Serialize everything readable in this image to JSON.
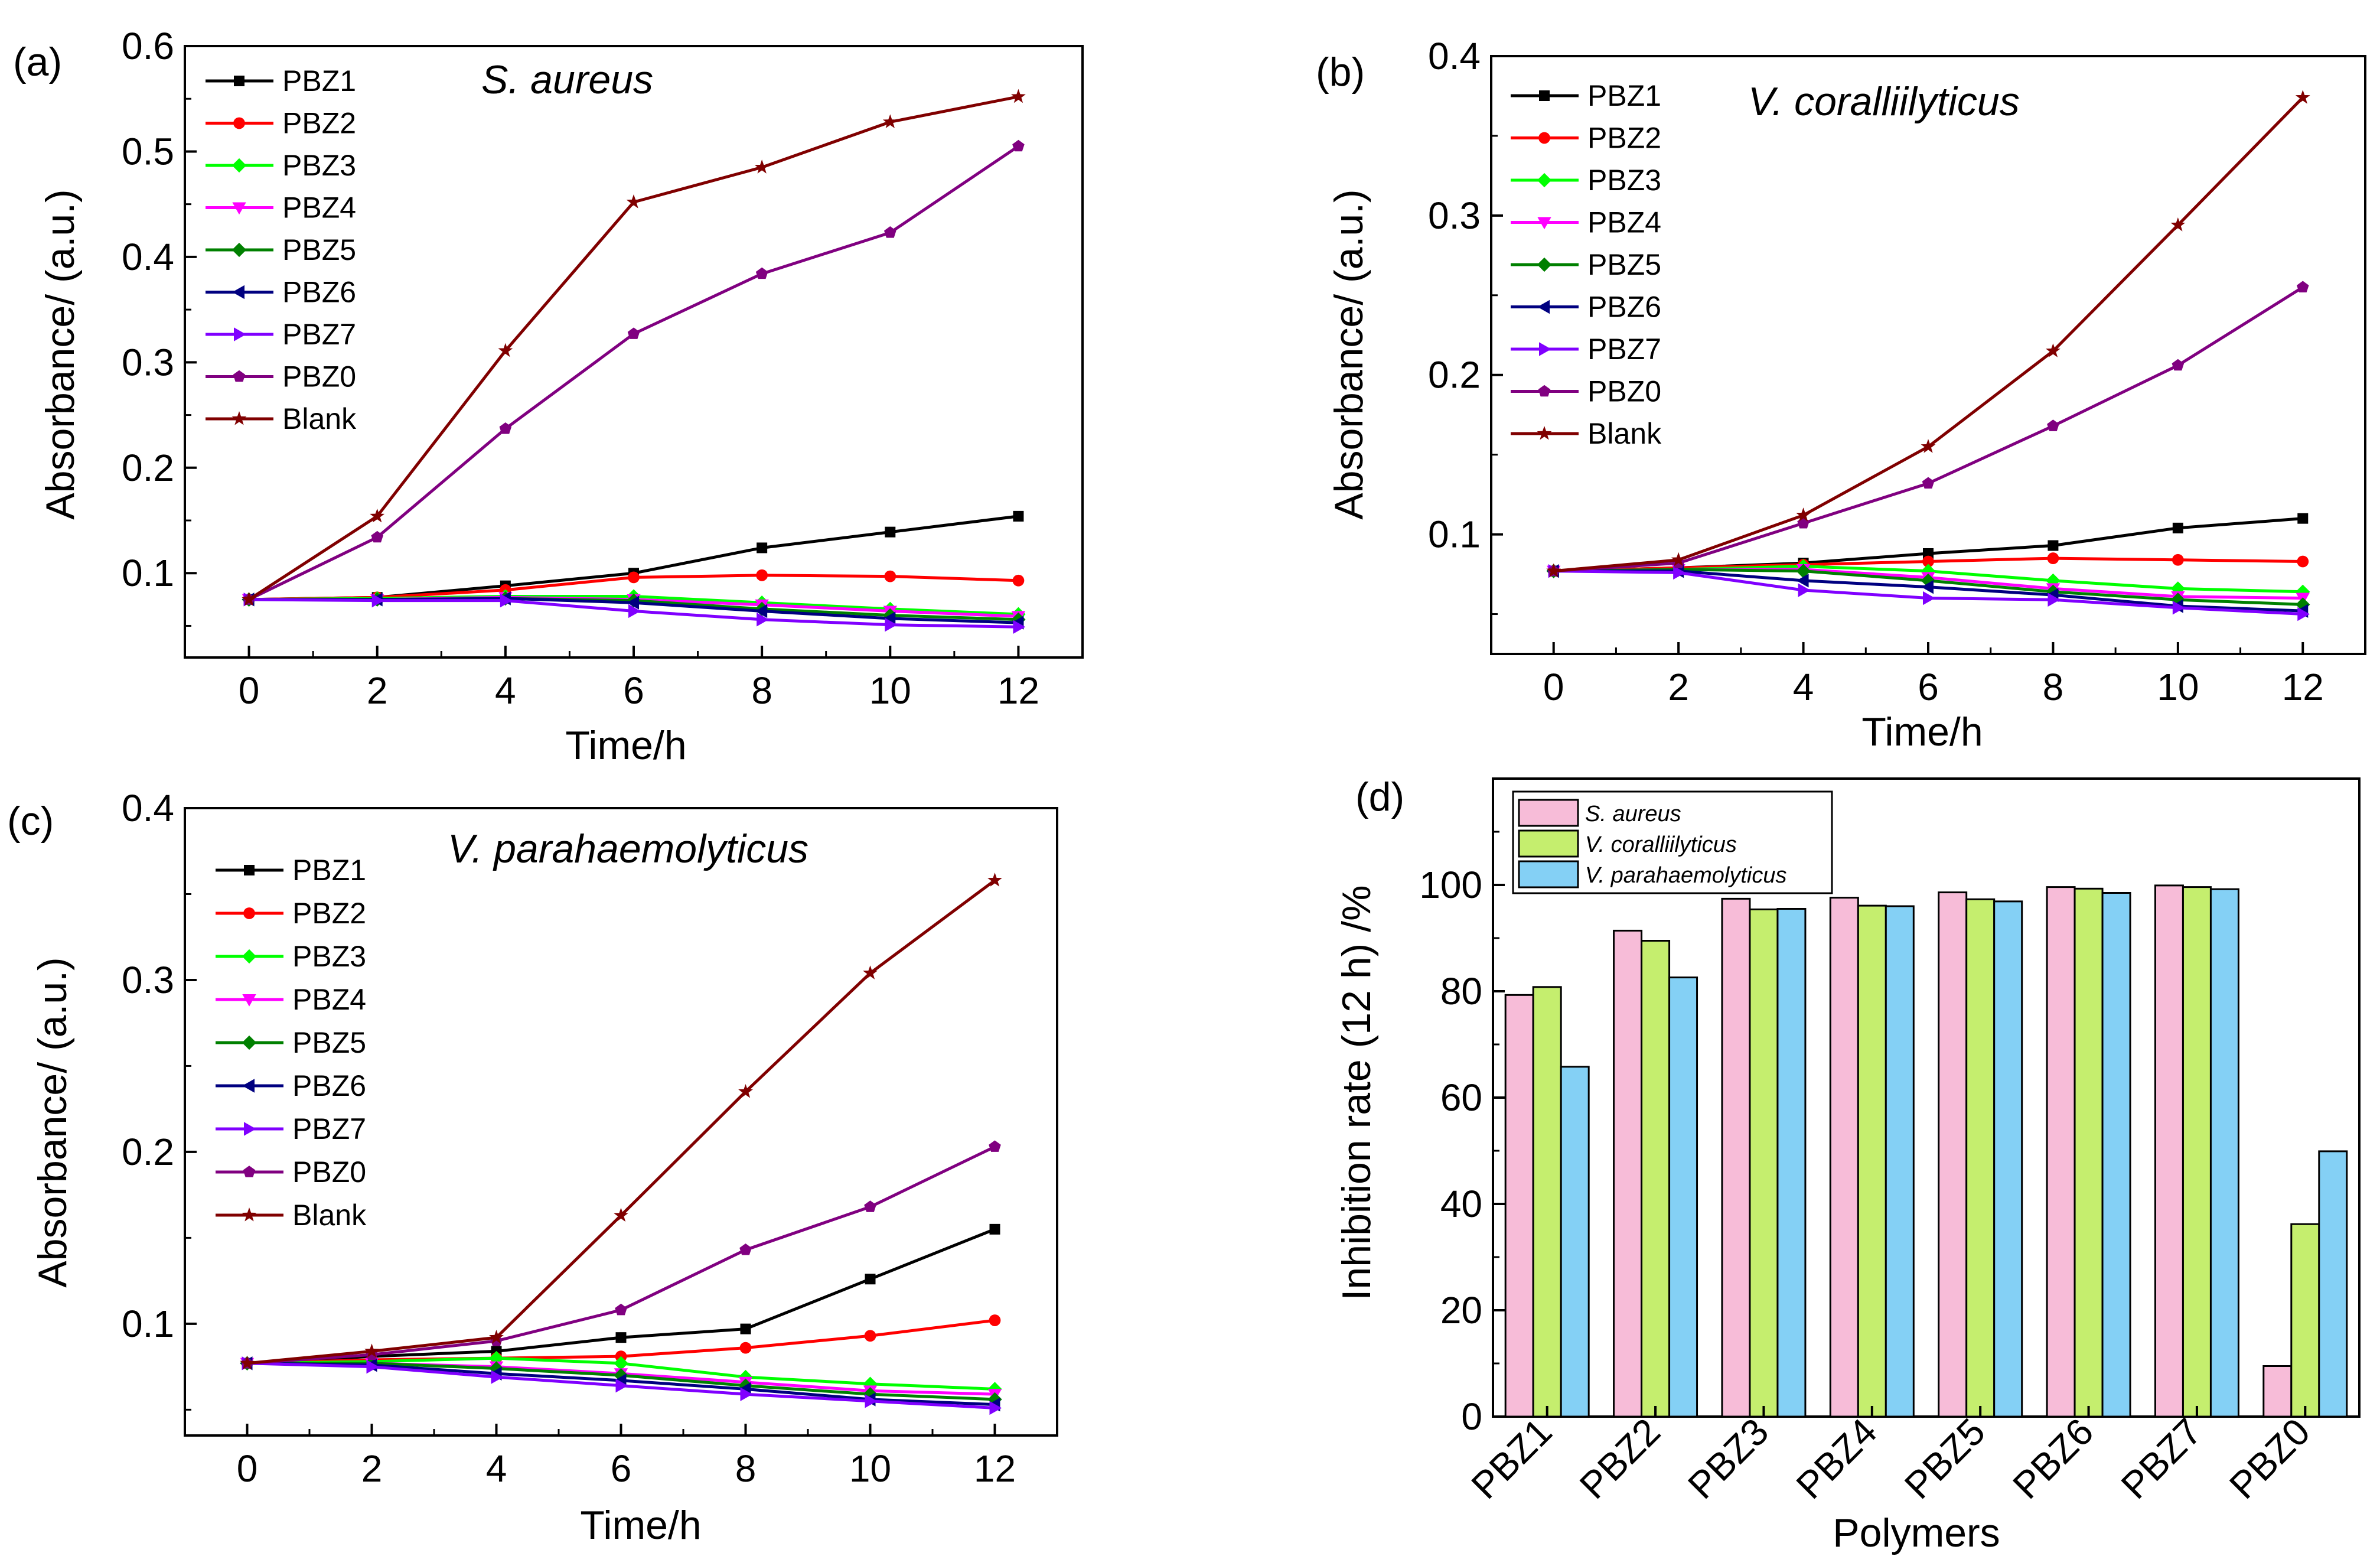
{
  "colors": {
    "PBZ1": "#000000",
    "PBZ2": "#ff0000",
    "PBZ3": "#00ff00",
    "PBZ4": "#ff00ff",
    "PBZ5": "#008000",
    "PBZ6": "#000080",
    "PBZ7": "#8000ff",
    "PBZ0": "#800080",
    "Blank": "#800000",
    "bar_s_aureus": "#f7bcd8",
    "bar_v_coral": "#c5ee6e",
    "bar_v_para": "#84d0f5"
  },
  "chart_data": [
    {
      "id": "a",
      "type": "line",
      "panel_label": "(a)",
      "title": "S. aureus",
      "xlabel": "Time/h",
      "ylabel": "Absorbance/ (a.u.)",
      "x": [
        0,
        2,
        4,
        6,
        8,
        10,
        12
      ],
      "xlim": [
        -1,
        13
      ],
      "ylim": [
        0.02,
        0.6
      ],
      "xticks": [
        "0",
        "2",
        "4",
        "6",
        "8",
        "10",
        "12"
      ],
      "yticks": [
        "0.1",
        "0.2",
        "0.3",
        "0.4",
        "0.5",
        "0.6"
      ],
      "ytick_values": [
        0.1,
        0.2,
        0.3,
        0.4,
        0.5,
        0.6
      ],
      "legend_position": "top-left",
      "series": [
        {
          "name": "PBZ1",
          "marker": "square",
          "values": [
            0.075,
            0.077,
            0.088,
            0.1,
            0.124,
            0.139,
            0.154
          ]
        },
        {
          "name": "PBZ2",
          "marker": "circle",
          "values": [
            0.075,
            0.077,
            0.084,
            0.096,
            0.098,
            0.097,
            0.093
          ]
        },
        {
          "name": "PBZ3",
          "marker": "diamond",
          "values": [
            0.075,
            0.076,
            0.078,
            0.078,
            0.072,
            0.066,
            0.061
          ]
        },
        {
          "name": "PBZ4",
          "marker": "triangle-down",
          "values": [
            0.075,
            0.075,
            0.077,
            0.075,
            0.07,
            0.064,
            0.059
          ]
        },
        {
          "name": "PBZ5",
          "marker": "diamond",
          "values": [
            0.075,
            0.075,
            0.076,
            0.074,
            0.066,
            0.06,
            0.056
          ]
        },
        {
          "name": "PBZ6",
          "marker": "triangle-left",
          "values": [
            0.075,
            0.075,
            0.076,
            0.072,
            0.064,
            0.057,
            0.053
          ]
        },
        {
          "name": "PBZ7",
          "marker": "triangle-right",
          "values": [
            0.075,
            0.074,
            0.074,
            0.064,
            0.056,
            0.051,
            0.049
          ]
        },
        {
          "name": "PBZ0",
          "marker": "pentagon",
          "values": [
            0.075,
            0.134,
            0.237,
            0.327,
            0.384,
            0.423,
            0.505
          ]
        },
        {
          "name": "Blank",
          "marker": "star",
          "values": [
            0.075,
            0.154,
            0.311,
            0.452,
            0.485,
            0.528,
            0.552
          ]
        }
      ]
    },
    {
      "id": "b",
      "type": "line",
      "panel_label": "(b)",
      "title": "V. coralliilyticus",
      "xlabel": "Time/h",
      "ylabel": "Absorbance/ (a.u.)",
      "x": [
        0,
        2,
        4,
        6,
        8,
        10,
        12
      ],
      "xlim": [
        -1,
        13
      ],
      "ylim": [
        0.025,
        0.4
      ],
      "xticks": [
        "0",
        "2",
        "4",
        "6",
        "8",
        "10",
        "12"
      ],
      "yticks": [
        "0.1",
        "0.2",
        "0.3",
        "0.4"
      ],
      "ytick_values": [
        0.1,
        0.2,
        0.3,
        0.4
      ],
      "legend_position": "top-left",
      "series": [
        {
          "name": "PBZ1",
          "marker": "square",
          "values": [
            0.077,
            0.079,
            0.082,
            0.088,
            0.093,
            0.104,
            0.11
          ]
        },
        {
          "name": "PBZ2",
          "marker": "circle",
          "values": [
            0.077,
            0.079,
            0.081,
            0.083,
            0.085,
            0.084,
            0.083
          ]
        },
        {
          "name": "PBZ3",
          "marker": "diamond",
          "values": [
            0.077,
            0.078,
            0.08,
            0.077,
            0.071,
            0.066,
            0.064
          ]
        },
        {
          "name": "PBZ4",
          "marker": "triangle-down",
          "values": [
            0.077,
            0.078,
            0.078,
            0.073,
            0.066,
            0.061,
            0.06
          ]
        },
        {
          "name": "PBZ5",
          "marker": "diamond",
          "values": [
            0.077,
            0.078,
            0.077,
            0.071,
            0.064,
            0.059,
            0.056
          ]
        },
        {
          "name": "PBZ6",
          "marker": "triangle-left",
          "values": [
            0.077,
            0.077,
            0.071,
            0.067,
            0.062,
            0.055,
            0.052
          ]
        },
        {
          "name": "PBZ7",
          "marker": "triangle-right",
          "values": [
            0.077,
            0.076,
            0.065,
            0.06,
            0.059,
            0.054,
            0.05
          ]
        },
        {
          "name": "PBZ0",
          "marker": "pentagon",
          "values": [
            0.077,
            0.082,
            0.107,
            0.132,
            0.168,
            0.206,
            0.255
          ]
        },
        {
          "name": "Blank",
          "marker": "star",
          "values": [
            0.077,
            0.084,
            0.112,
            0.155,
            0.215,
            0.294,
            0.374
          ]
        }
      ]
    },
    {
      "id": "c",
      "type": "line",
      "panel_label": "(c)",
      "title": "V. parahaemolyticus",
      "xlabel": "Time/h",
      "ylabel": "Absorbance/ (a.u.)",
      "x": [
        0,
        2,
        4,
        6,
        8,
        10,
        12
      ],
      "xlim": [
        -1,
        13
      ],
      "ylim": [
        0.035,
        0.4
      ],
      "xticks": [
        "0",
        "2",
        "4",
        "6",
        "8",
        "10",
        "12"
      ],
      "yticks": [
        "0.1",
        "0.2",
        "0.3",
        "0.4"
      ],
      "ytick_values": [
        0.1,
        0.2,
        0.3,
        0.4
      ],
      "legend_position": "top-left",
      "series": [
        {
          "name": "PBZ1",
          "marker": "square",
          "values": [
            0.077,
            0.081,
            0.084,
            0.092,
            0.097,
            0.126,
            0.155
          ]
        },
        {
          "name": "PBZ2",
          "marker": "circle",
          "values": [
            0.077,
            0.079,
            0.08,
            0.081,
            0.086,
            0.093,
            0.102
          ]
        },
        {
          "name": "PBZ3",
          "marker": "diamond",
          "values": [
            0.077,
            0.078,
            0.08,
            0.077,
            0.069,
            0.065,
            0.062
          ]
        },
        {
          "name": "PBZ4",
          "marker": "triangle-down",
          "values": [
            0.077,
            0.077,
            0.075,
            0.071,
            0.066,
            0.061,
            0.059
          ]
        },
        {
          "name": "PBZ5",
          "marker": "diamond",
          "values": [
            0.077,
            0.077,
            0.074,
            0.07,
            0.064,
            0.059,
            0.056
          ]
        },
        {
          "name": "PBZ6",
          "marker": "triangle-left",
          "values": [
            0.077,
            0.076,
            0.071,
            0.067,
            0.062,
            0.056,
            0.053
          ]
        },
        {
          "name": "PBZ7",
          "marker": "triangle-right",
          "values": [
            0.077,
            0.075,
            0.069,
            0.064,
            0.059,
            0.055,
            0.051
          ]
        },
        {
          "name": "PBZ0",
          "marker": "pentagon",
          "values": [
            0.077,
            0.082,
            0.09,
            0.108,
            0.143,
            0.168,
            0.203
          ]
        },
        {
          "name": "Blank",
          "marker": "star",
          "values": [
            0.077,
            0.084,
            0.092,
            0.163,
            0.235,
            0.304,
            0.358
          ]
        }
      ]
    },
    {
      "id": "d",
      "type": "bar",
      "panel_label": "(d)",
      "title": "",
      "xlabel": "Polymers",
      "ylabel": "Inhibition rate (12 h) /%",
      "categories": [
        "PBZ1",
        "PBZ2",
        "PBZ3",
        "PBZ4",
        "PBZ5",
        "PBZ6",
        "PBZ7",
        "PBZ0"
      ],
      "ylim": [
        0,
        120
      ],
      "yticks": [
        "0",
        "20",
        "40",
        "60",
        "80",
        "100"
      ],
      "ytick_values": [
        0,
        20,
        40,
        60,
        80,
        100
      ],
      "legend_position": "top-left",
      "series": [
        {
          "name": "S. aureus",
          "values": [
            79.3,
            91.4,
            97.4,
            97.6,
            98.6,
            99.6,
            99.9,
            9.5
          ]
        },
        {
          "name": "V. coralliilyticus",
          "values": [
            80.8,
            89.5,
            95.4,
            96.1,
            97.3,
            99.3,
            99.6,
            36.2
          ]
        },
        {
          "name": "V. parahaemolyticus",
          "values": [
            65.8,
            82.6,
            95.5,
            96.0,
            96.9,
            98.5,
            99.2,
            49.9
          ]
        }
      ]
    }
  ]
}
